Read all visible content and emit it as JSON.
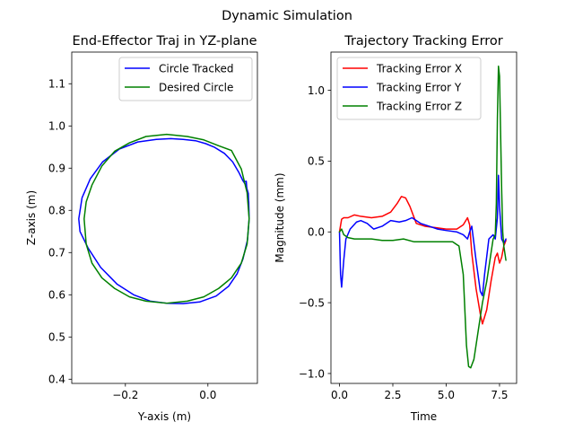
{
  "suptitle": "Dynamic Simulation",
  "chart_data": [
    {
      "type": "line",
      "title": "End-Effector Traj in YZ-plane",
      "xlabel": "Y-axis (m)",
      "ylabel": "Z-axis (m)",
      "xlim": [
        -0.33,
        0.12
      ],
      "ylim": [
        0.39,
        1.175
      ],
      "xticks": [
        {
          "value": -0.2,
          "label": "−0.2"
        },
        {
          "value": 0.0,
          "label": "0.0"
        }
      ],
      "yticks": [
        {
          "value": 0.4,
          "label": "0.4"
        },
        {
          "value": 0.5,
          "label": "0.5"
        },
        {
          "value": 0.6,
          "label": "0.6"
        },
        {
          "value": 0.7,
          "label": "0.7"
        },
        {
          "value": 0.8,
          "label": "0.8"
        },
        {
          "value": 0.9,
          "label": "0.9"
        },
        {
          "value": 1.0,
          "label": "1.0"
        },
        {
          "value": 1.1,
          "label": "1.1"
        }
      ],
      "legend_position": "upper right",
      "grid": false,
      "series": [
        {
          "name": "Circle Tracked",
          "color": "#0000ff",
          "x": [
            0.088,
            0.093,
            0.094,
            0.096,
            0.099,
            0.1,
            0.096,
            0.085,
            0.071,
            0.05,
            0.02,
            -0.02,
            -0.06,
            -0.1,
            -0.14,
            -0.18,
            -0.22,
            -0.26,
            -0.29,
            -0.31,
            -0.313,
            -0.305,
            -0.285,
            -0.255,
            -0.215,
            -0.17,
            -0.125,
            -0.09,
            -0.06,
            -0.03,
            -0.005,
            0.015,
            0.04,
            0.06,
            0.075,
            0.085,
            0.092,
            0.098,
            0.1
          ],
          "y": [
            0.868,
            0.869,
            0.855,
            0.84,
            0.82,
            0.78,
            0.73,
            0.685,
            0.65,
            0.62,
            0.597,
            0.583,
            0.579,
            0.58,
            0.585,
            0.6,
            0.625,
            0.665,
            0.71,
            0.75,
            0.78,
            0.83,
            0.875,
            0.915,
            0.945,
            0.962,
            0.968,
            0.97,
            0.968,
            0.965,
            0.958,
            0.95,
            0.935,
            0.915,
            0.89,
            0.87,
            0.86,
            0.84,
            0.78
          ]
        },
        {
          "name": "Desired Circle",
          "color": "#008000",
          "x": [
            0.1,
            0.095,
            0.081,
            0.057,
            0.026,
            -0.01,
            -0.05,
            -0.1,
            -0.15,
            -0.19,
            -0.226,
            -0.257,
            -0.281,
            -0.295,
            -0.3,
            -0.295,
            -0.281,
            -0.257,
            -0.226,
            -0.19,
            -0.15,
            -0.1,
            -0.05,
            -0.01,
            0.026,
            0.057,
            0.081,
            0.095,
            0.1
          ],
          "y": [
            0.78,
            0.842,
            0.898,
            0.942,
            0.953,
            0.967,
            0.975,
            0.98,
            0.975,
            0.96,
            0.94,
            0.905,
            0.86,
            0.82,
            0.78,
            0.72,
            0.675,
            0.64,
            0.615,
            0.595,
            0.585,
            0.58,
            0.585,
            0.595,
            0.615,
            0.64,
            0.675,
            0.72,
            0.78
          ]
        }
      ]
    },
    {
      "type": "line",
      "title": "Trajectory Tracking Error",
      "xlabel": "Time",
      "ylabel": "Magnitude (mm)",
      "xlim": [
        -0.4,
        8.3
      ],
      "ylim": [
        -1.07,
        1.27
      ],
      "xticks": [
        {
          "value": 0.0,
          "label": "0.0"
        },
        {
          "value": 2.5,
          "label": "2.5"
        },
        {
          "value": 5.0,
          "label": "5.0"
        },
        {
          "value": 7.5,
          "label": "7.5"
        }
      ],
      "yticks": [
        {
          "value": -1.0,
          "label": "−1.0"
        },
        {
          "value": -0.5,
          "label": "−0.5"
        },
        {
          "value": 0.0,
          "label": "0.0"
        },
        {
          "value": 0.5,
          "label": "0.5"
        },
        {
          "value": 1.0,
          "label": "1.0"
        }
      ],
      "legend_position": "upper left",
      "grid": false,
      "series": [
        {
          "name": "Tracking Error X",
          "color": "#ff0000",
          "x": [
            0.0,
            0.1,
            0.2,
            0.4,
            0.7,
            1.0,
            1.5,
            2.0,
            2.4,
            2.7,
            2.9,
            3.1,
            3.3,
            3.6,
            4.0,
            4.5,
            5.0,
            5.5,
            5.8,
            6.0,
            6.1,
            6.2,
            6.4,
            6.6,
            6.7,
            6.9,
            7.1,
            7.3,
            7.4,
            7.5,
            7.6,
            7.7,
            7.8
          ],
          "y": [
            0.0,
            0.09,
            0.1,
            0.1,
            0.12,
            0.11,
            0.1,
            0.11,
            0.14,
            0.2,
            0.25,
            0.24,
            0.18,
            0.06,
            0.04,
            0.03,
            0.02,
            0.02,
            0.05,
            0.1,
            0.05,
            -0.15,
            -0.4,
            -0.58,
            -0.65,
            -0.55,
            -0.35,
            -0.18,
            -0.15,
            -0.22,
            -0.18,
            -0.1,
            -0.06
          ]
        },
        {
          "name": "Tracking Error Y",
          "color": "#0000ff",
          "x": [
            0.0,
            0.05,
            0.1,
            0.2,
            0.3,
            0.5,
            0.8,
            1.0,
            1.3,
            1.6,
            2.0,
            2.4,
            2.8,
            3.1,
            3.4,
            3.8,
            4.2,
            4.6,
            5.0,
            5.5,
            5.8,
            6.0,
            6.1,
            6.2,
            6.4,
            6.6,
            6.7,
            6.8,
            7.0,
            7.2,
            7.3,
            7.4,
            7.45,
            7.5,
            7.6,
            7.7,
            7.8
          ],
          "y": [
            0.0,
            -0.3,
            -0.39,
            -0.2,
            -0.05,
            0.02,
            0.07,
            0.08,
            0.06,
            0.02,
            0.04,
            0.08,
            0.07,
            0.08,
            0.1,
            0.06,
            0.04,
            0.02,
            0.01,
            0.0,
            -0.02,
            -0.05,
            0.0,
            0.04,
            -0.2,
            -0.42,
            -0.45,
            -0.3,
            -0.05,
            -0.02,
            -0.05,
            0.1,
            0.4,
            0.18,
            -0.05,
            -0.08,
            -0.05
          ]
        },
        {
          "name": "Tracking Error Z",
          "color": "#008000",
          "x": [
            0.0,
            0.1,
            0.2,
            0.4,
            0.7,
            1.0,
            1.5,
            2.0,
            2.5,
            3.0,
            3.5,
            4.0,
            4.5,
            5.0,
            5.3,
            5.6,
            5.8,
            5.95,
            6.05,
            6.15,
            6.3,
            6.5,
            6.7,
            6.9,
            7.1,
            7.2,
            7.3,
            7.35,
            7.4,
            7.45,
            7.5,
            7.55,
            7.6,
            7.65,
            7.7,
            7.8
          ],
          "y": [
            0.0,
            0.02,
            -0.02,
            -0.04,
            -0.05,
            -0.05,
            -0.05,
            -0.06,
            -0.06,
            -0.05,
            -0.07,
            -0.07,
            -0.07,
            -0.07,
            -0.07,
            -0.1,
            -0.3,
            -0.8,
            -0.95,
            -0.96,
            -0.9,
            -0.7,
            -0.5,
            -0.35,
            -0.15,
            -0.05,
            -0.02,
            0.2,
            0.8,
            1.17,
            1.1,
            0.7,
            0.3,
            0.0,
            -0.1,
            -0.2
          ]
        }
      ]
    }
  ]
}
